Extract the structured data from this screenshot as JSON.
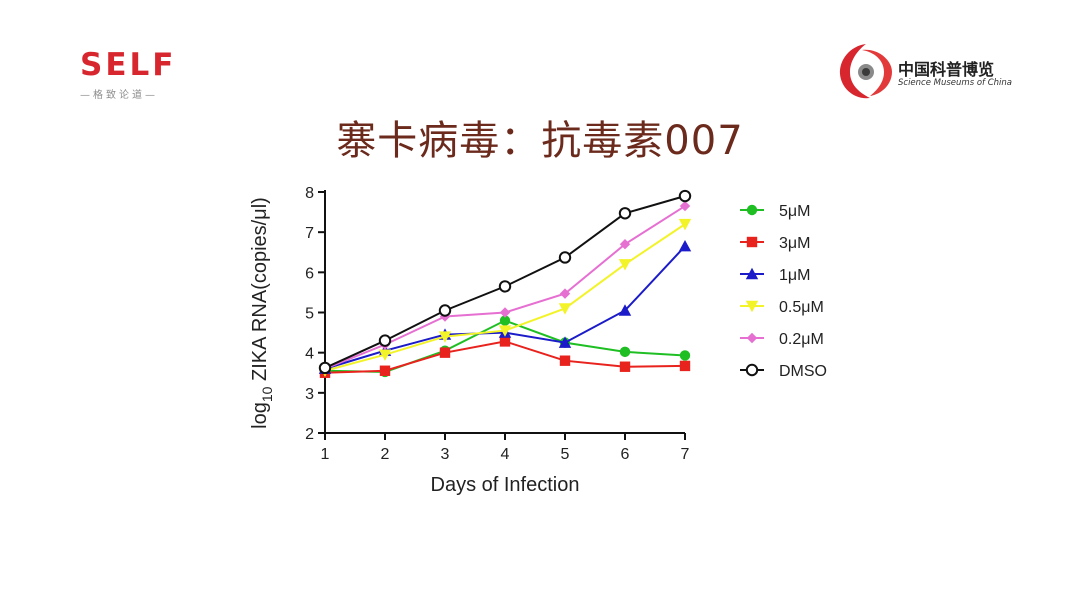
{
  "brand": {
    "self_word": "SELF",
    "self_tagline": "—格致论道—",
    "museum_cn": "中国科普博览",
    "museum_en": "Science Museums of China"
  },
  "slide_title": "寨卡病毒：抗毒素007",
  "colors": {
    "title": "#6b2a1c",
    "brand_red": "#d7262e"
  },
  "chart_data": {
    "type": "line",
    "xlabel": "Days of Infection",
    "ylabel_prefix": "log",
    "ylabel_sub": "10",
    "ylabel_suffix": " ZIKA RNA(copies/μl)",
    "xlim": [
      1,
      7
    ],
    "ylim": [
      2,
      8
    ],
    "x": [
      1,
      2,
      3,
      4,
      5,
      6,
      7
    ],
    "grid": false,
    "legend_position": "right",
    "series": [
      {
        "name": "5μM",
        "color": "#1fbf24",
        "marker": "circle",
        "values": [
          3.55,
          3.52,
          4.05,
          4.8,
          4.25,
          4.02,
          3.93
        ]
      },
      {
        "name": "3μM",
        "color": "#e8221c",
        "marker": "square",
        "values": [
          3.5,
          3.55,
          4.0,
          4.28,
          3.8,
          3.65,
          3.67
        ]
      },
      {
        "name": "1μM",
        "color": "#1b1bc9",
        "marker": "triangle",
        "values": [
          3.6,
          4.05,
          4.45,
          4.5,
          4.25,
          5.05,
          6.65
        ]
      },
      {
        "name": "0.5μM",
        "color": "#f3f32a",
        "marker": "triangle-down",
        "values": [
          3.55,
          3.95,
          4.4,
          4.55,
          5.1,
          6.2,
          7.2
        ]
      },
      {
        "name": "0.2μM",
        "color": "#e66fd2",
        "marker": "diamond",
        "values": [
          3.6,
          4.2,
          4.9,
          5.0,
          5.47,
          6.7,
          7.65
        ]
      },
      {
        "name": "DMSO",
        "color": "#111111",
        "marker": "open-circle",
        "values": [
          3.62,
          4.3,
          5.05,
          5.65,
          6.37,
          7.47,
          7.9
        ]
      }
    ]
  }
}
